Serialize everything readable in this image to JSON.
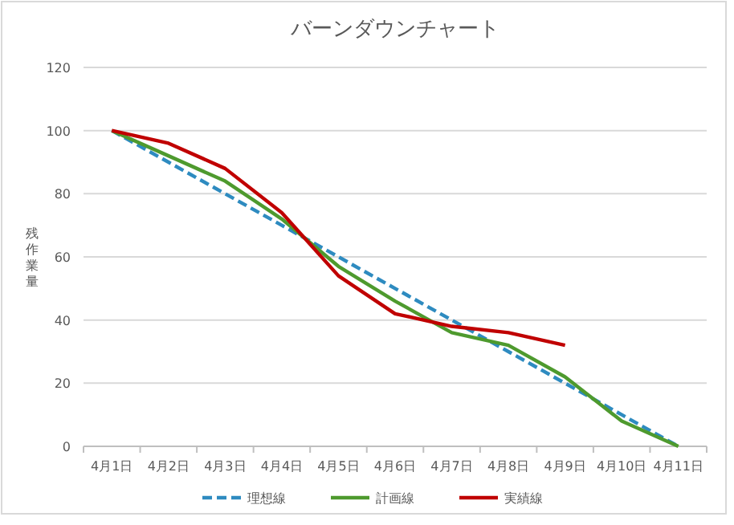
{
  "chart_data": {
    "type": "line",
    "title": "バーンダウンチャート",
    "ylabel": "残作業量",
    "categories": [
      "4月1日",
      "4月2日",
      "4月3日",
      "4月4日",
      "4月5日",
      "4月6日",
      "4月7日",
      "4月8日",
      "4月9日",
      "4月10日",
      "4月11日"
    ],
    "series": [
      {
        "name": "理想線",
        "color": "#2e8bc0",
        "line_style": "dashed",
        "values": [
          100,
          90,
          80,
          70,
          60,
          50,
          40,
          30,
          20,
          10,
          0
        ]
      },
      {
        "name": "計画線",
        "color": "#4e9a2e",
        "line_style": "solid",
        "values": [
          100,
          92,
          84,
          72,
          57,
          46,
          36,
          32,
          22,
          8,
          0
        ]
      },
      {
        "name": "実績線",
        "color": "#c00000",
        "line_style": "solid",
        "values": [
          100,
          96,
          88,
          74,
          54,
          42,
          38,
          36,
          32,
          null,
          null
        ]
      }
    ],
    "ylim": [
      0,
      120
    ],
    "yticks": [
      0,
      20,
      40,
      60,
      80,
      100,
      120
    ],
    "grid": "y",
    "legend": "bottom",
    "marker": "none"
  }
}
